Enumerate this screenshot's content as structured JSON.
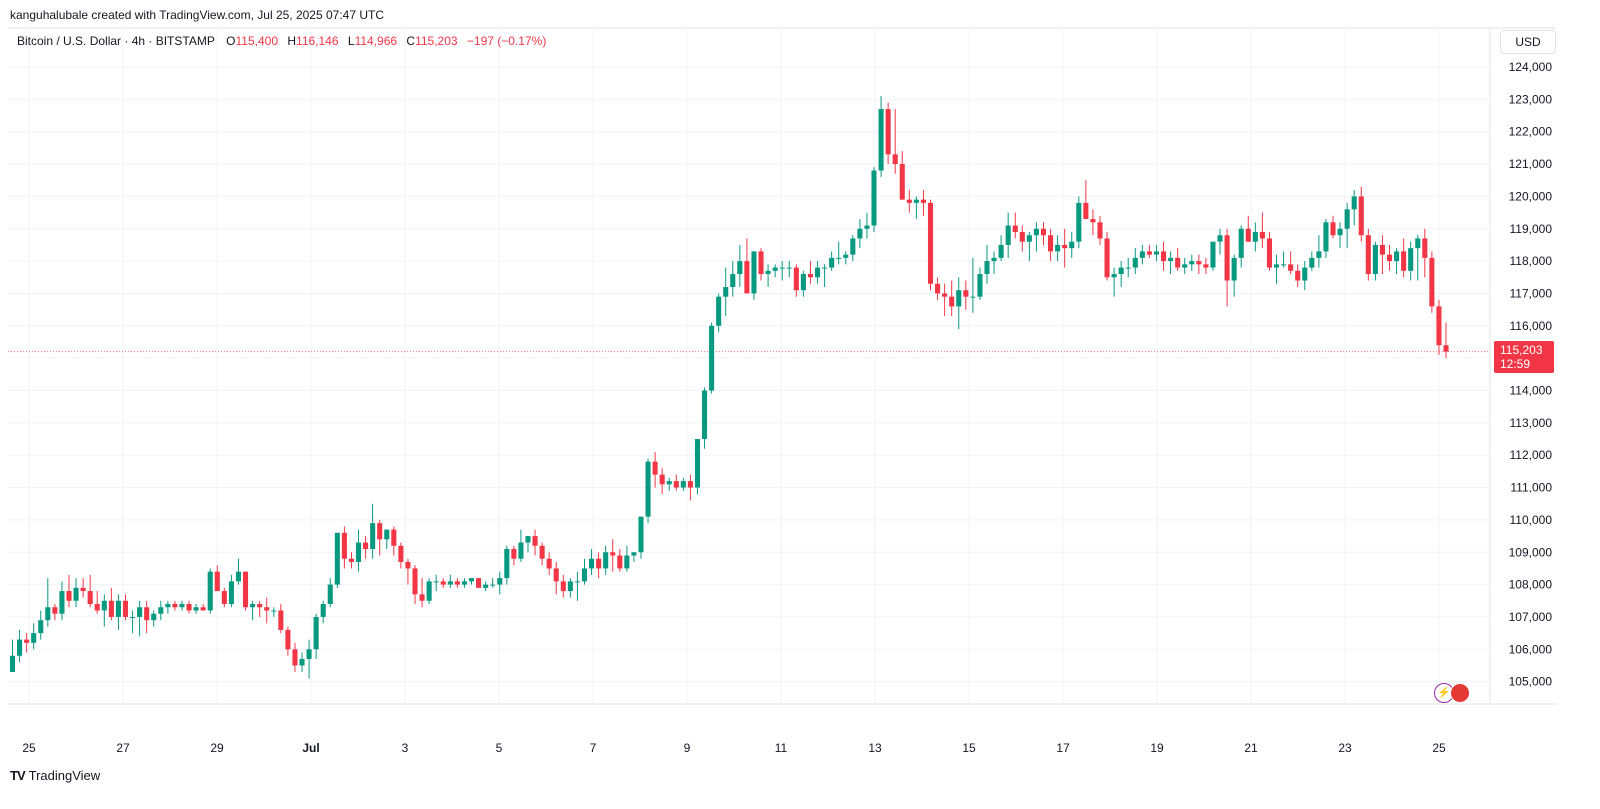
{
  "header": {
    "author_line": "kanguhalubale created with TradingView.com, Jul 25, 2025 07:47 UTC",
    "symbol": "Bitcoin / U.S. Dollar · 4h · BITSTAMP",
    "o_label": "O",
    "o_value": "115,400",
    "h_label": "H",
    "h_value": "116,146",
    "l_label": "L",
    "l_value": "114,966",
    "c_label": "C",
    "c_value": "115,203",
    "change": "−197 (−0.17%)",
    "currency": "USD"
  },
  "price_tag": {
    "price": "115,203",
    "countdown": "12:59"
  },
  "brand": {
    "name": "TradingView"
  },
  "colors": {
    "up": "#089981",
    "down": "#f23645",
    "grid": "#f0f3fa",
    "text": "#131722"
  },
  "chart_data": {
    "type": "candlestick",
    "ylim": [
      104250,
      124700
    ],
    "x_tick_labels": [
      "25",
      "27",
      "29",
      "Jul",
      "3",
      "5",
      "7",
      "9",
      "11",
      "13",
      "15",
      "17",
      "19",
      "21",
      "23",
      "25"
    ],
    "y_tick_labels": [
      "124,000",
      "123,000",
      "122,000",
      "121,000",
      "120,000",
      "119,000",
      "118,000",
      "117,000",
      "116,000",
      "115,000",
      "114,000",
      "113,000",
      "112,000",
      "111,000",
      "110,000",
      "109,000",
      "108,000",
      "107,000",
      "106,000",
      "105,000"
    ],
    "last_price": 115203,
    "candles": [
      [
        105300,
        106300,
        105300,
        105800
      ],
      [
        105800,
        106600,
        105600,
        106300
      ],
      [
        106300,
        106500,
        105900,
        106200
      ],
      [
        106200,
        106800,
        106000,
        106500
      ],
      [
        106500,
        107200,
        106300,
        106900
      ],
      [
        106900,
        108200,
        106700,
        107300
      ],
      [
        107300,
        107400,
        106900,
        107100
      ],
      [
        107100,
        108100,
        106900,
        107800
      ],
      [
        107800,
        108300,
        107300,
        107500
      ],
      [
        107500,
        108200,
        107300,
        107900
      ],
      [
        107900,
        108200,
        107600,
        107800
      ],
      [
        107800,
        108300,
        107300,
        107400
      ],
      [
        107400,
        107800,
        107100,
        107200
      ],
      [
        107200,
        107700,
        106700,
        107500
      ],
      [
        107500,
        107900,
        106900,
        107000
      ],
      [
        107000,
        107700,
        106600,
        107500
      ],
      [
        107500,
        107700,
        106900,
        107000
      ],
      [
        107000,
        107200,
        106500,
        107000
      ],
      [
        107000,
        107500,
        106400,
        107300
      ],
      [
        107300,
        107500,
        106500,
        106900
      ],
      [
        106900,
        107200,
        106700,
        107100
      ],
      [
        107100,
        107500,
        106900,
        107300
      ],
      [
        107300,
        107500,
        107100,
        107400
      ],
      [
        107400,
        107500,
        107200,
        107300
      ],
      [
        107300,
        107500,
        107200,
        107400
      ],
      [
        107400,
        107500,
        107100,
        107200
      ],
      [
        107200,
        107400,
        107100,
        107300
      ],
      [
        107300,
        107400,
        107200,
        107200
      ],
      [
        107200,
        108500,
        107100,
        108400
      ],
      [
        108400,
        108600,
        107800,
        107800
      ],
      [
        107800,
        107900,
        107300,
        107400
      ],
      [
        107400,
        108300,
        107300,
        108100
      ],
      [
        108100,
        108800,
        108000,
        108400
      ],
      [
        108400,
        108400,
        107200,
        107300
      ],
      [
        107300,
        107500,
        106900,
        107400
      ],
      [
        107400,
        107500,
        107000,
        107300
      ],
      [
        107300,
        107600,
        106800,
        107200
      ],
      [
        107200,
        107300,
        107000,
        107200
      ],
      [
        107200,
        107400,
        106500,
        106600
      ],
      [
        106600,
        106700,
        105800,
        106000
      ],
      [
        106000,
        106200,
        105300,
        105500
      ],
      [
        105500,
        105900,
        105300,
        105700
      ],
      [
        105700,
        106300,
        105100,
        106000
      ],
      [
        106000,
        107100,
        105700,
        107000
      ],
      [
        107000,
        107500,
        106800,
        107400
      ],
      [
        107400,
        108200,
        107300,
        108000
      ],
      [
        108000,
        109600,
        107900,
        109600
      ],
      [
        109600,
        109800,
        108500,
        108800
      ],
      [
        108800,
        109000,
        108500,
        108700
      ],
      [
        108700,
        109700,
        108400,
        109300
      ],
      [
        109300,
        109500,
        108800,
        109100
      ],
      [
        109100,
        110500,
        108800,
        109900
      ],
      [
        109900,
        110000,
        108900,
        109400
      ],
      [
        109400,
        109700,
        109100,
        109700
      ],
      [
        109700,
        109800,
        108900,
        109200
      ],
      [
        109200,
        109300,
        108500,
        108700
      ],
      [
        108700,
        108800,
        108000,
        108500
      ],
      [
        108500,
        108600,
        107400,
        107700
      ],
      [
        107700,
        108200,
        107300,
        107500
      ],
      [
        107500,
        108200,
        107400,
        108100
      ],
      [
        108100,
        108300,
        107800,
        108100
      ],
      [
        108100,
        108200,
        107900,
        108000
      ],
      [
        108000,
        108300,
        107900,
        108100
      ],
      [
        108100,
        108200,
        107900,
        108000
      ],
      [
        108000,
        108200,
        107900,
        108100
      ],
      [
        108100,
        108200,
        108000,
        108200
      ],
      [
        108200,
        108200,
        107900,
        107900
      ],
      [
        107900,
        108100,
        107800,
        108000
      ],
      [
        108000,
        108200,
        107900,
        108000
      ],
      [
        108000,
        108400,
        107700,
        108200
      ],
      [
        108200,
        109200,
        108000,
        109100
      ],
      [
        109100,
        109200,
        108600,
        108800
      ],
      [
        108800,
        109700,
        108700,
        109300
      ],
      [
        109300,
        109500,
        109000,
        109500
      ],
      [
        109500,
        109700,
        108900,
        109200
      ],
      [
        109200,
        109300,
        108600,
        108800
      ],
      [
        108800,
        109000,
        108300,
        108500
      ],
      [
        108500,
        108700,
        107700,
        108100
      ],
      [
        108100,
        108300,
        107600,
        107800
      ],
      [
        107800,
        108200,
        107600,
        108100
      ],
      [
        108100,
        108400,
        107500,
        108100
      ],
      [
        108100,
        108800,
        108000,
        108500
      ],
      [
        108500,
        109100,
        108300,
        108800
      ],
      [
        108800,
        109000,
        108200,
        108500
      ],
      [
        108500,
        109200,
        108300,
        109000
      ],
      [
        109000,
        109400,
        108400,
        108900
      ],
      [
        108900,
        109100,
        108400,
        108500
      ],
      [
        108500,
        109200,
        108400,
        108900
      ],
      [
        108900,
        109000,
        108700,
        109000
      ],
      [
        109000,
        110100,
        108800,
        110100
      ],
      [
        110100,
        111900,
        109900,
        111800
      ],
      [
        111800,
        112100,
        111000,
        111400
      ],
      [
        111400,
        111600,
        110800,
        111100
      ],
      [
        111100,
        111300,
        110900,
        111200
      ],
      [
        111200,
        111400,
        110900,
        111000
      ],
      [
        111000,
        111300,
        110900,
        111200
      ],
      [
        111200,
        111400,
        110600,
        111000
      ],
      [
        111000,
        112500,
        110800,
        112500
      ],
      [
        112500,
        114100,
        112200,
        114000
      ],
      [
        114000,
        116100,
        113900,
        116000
      ],
      [
        116000,
        117000,
        115800,
        116900
      ],
      [
        116900,
        117800,
        116300,
        117200
      ],
      [
        117200,
        118000,
        116900,
        117600
      ],
      [
        117600,
        118500,
        117200,
        118000
      ],
      [
        118000,
        118700,
        117000,
        117000
      ],
      [
        117000,
        118300,
        116800,
        118300
      ],
      [
        118300,
        118400,
        117400,
        117600
      ],
      [
        117600,
        117900,
        117200,
        117700
      ],
      [
        117700,
        117900,
        117500,
        117800
      ],
      [
        117800,
        118000,
        117400,
        117800
      ],
      [
        117800,
        118000,
        117500,
        117800
      ],
      [
        117800,
        117900,
        116900,
        117100
      ],
      [
        117100,
        117700,
        116900,
        117600
      ],
      [
        117600,
        118000,
        117300,
        117500
      ],
      [
        117500,
        118000,
        117300,
        117800
      ],
      [
        117800,
        117900,
        117200,
        117800
      ],
      [
        117800,
        118300,
        117700,
        118100
      ],
      [
        118100,
        118600,
        117900,
        118100
      ],
      [
        118100,
        118300,
        117900,
        118200
      ],
      [
        118200,
        118800,
        118000,
        118700
      ],
      [
        118700,
        119300,
        118400,
        119000
      ],
      [
        119000,
        119500,
        118700,
        119100
      ],
      [
        119100,
        120900,
        118900,
        120800
      ],
      [
        120800,
        123100,
        120600,
        122700
      ],
      [
        122700,
        122900,
        121000,
        121300
      ],
      [
        121300,
        122700,
        120700,
        121000
      ],
      [
        121000,
        121400,
        119900,
        119900
      ],
      [
        119900,
        120200,
        119500,
        119800
      ],
      [
        119800,
        120000,
        119300,
        119900
      ],
      [
        119900,
        120200,
        119400,
        119800
      ],
      [
        119800,
        119900,
        117100,
        117300
      ],
      [
        117300,
        117500,
        116800,
        117000
      ],
      [
        117000,
        117300,
        116300,
        116900
      ],
      [
        116900,
        117400,
        116300,
        116600
      ],
      [
        116600,
        117500,
        115900,
        117100
      ],
      [
        117100,
        117400,
        116500,
        116900
      ],
      [
        116900,
        118100,
        116400,
        116900
      ],
      [
        116900,
        117800,
        116800,
        117600
      ],
      [
        117600,
        118500,
        117300,
        118000
      ],
      [
        118000,
        118300,
        117600,
        118100
      ],
      [
        118100,
        118800,
        118000,
        118500
      ],
      [
        118500,
        119500,
        118100,
        119100
      ],
      [
        119100,
        119500,
        118700,
        118900
      ],
      [
        118900,
        119100,
        118300,
        118600
      ],
      [
        118600,
        118900,
        118000,
        118800
      ],
      [
        118800,
        119200,
        118300,
        119000
      ],
      [
        119000,
        119200,
        118500,
        118800
      ],
      [
        118800,
        119000,
        118000,
        118300
      ],
      [
        118300,
        118800,
        118000,
        118500
      ],
      [
        118500,
        119000,
        117800,
        118400
      ],
      [
        118400,
        118900,
        118100,
        118600
      ],
      [
        118600,
        120000,
        118400,
        119800
      ],
      [
        119800,
        120500,
        119300,
        119300
      ],
      [
        119300,
        119600,
        118800,
        119200
      ],
      [
        119200,
        119400,
        118500,
        118700
      ],
      [
        118700,
        118900,
        117400,
        117500
      ],
      [
        117500,
        117800,
        116900,
        117600
      ],
      [
        117600,
        118000,
        117200,
        117800
      ],
      [
        117800,
        118100,
        117500,
        117800
      ],
      [
        117800,
        118400,
        117600,
        118100
      ],
      [
        118100,
        118500,
        117900,
        118300
      ],
      [
        118300,
        118500,
        118100,
        118200
      ],
      [
        118200,
        118500,
        118000,
        118300
      ],
      [
        118300,
        118600,
        117700,
        118000
      ],
      [
        118000,
        118300,
        117600,
        118100
      ],
      [
        118100,
        118400,
        117700,
        117800
      ],
      [
        117800,
        118100,
        117600,
        117900
      ],
      [
        117900,
        118200,
        117700,
        118000
      ],
      [
        118000,
        118200,
        117600,
        117900
      ],
      [
        117900,
        118100,
        117600,
        117800
      ],
      [
        117800,
        118600,
        117700,
        118600
      ],
      [
        118600,
        119000,
        118200,
        118800
      ],
      [
        118800,
        119000,
        116600,
        117400
      ],
      [
        117400,
        118200,
        116900,
        118100
      ],
      [
        118100,
        119100,
        117800,
        119000
      ],
      [
        119000,
        119400,
        118600,
        118600
      ],
      [
        118600,
        119200,
        118300,
        118900
      ],
      [
        118900,
        119500,
        118400,
        118700
      ],
      [
        118700,
        118900,
        117700,
        117800
      ],
      [
        117800,
        118200,
        117300,
        117900
      ],
      [
        117900,
        118300,
        117800,
        117900
      ],
      [
        117900,
        118300,
        117600,
        117700
      ],
      [
        117700,
        117900,
        117200,
        117400
      ],
      [
        117400,
        118000,
        117100,
        117800
      ],
      [
        117800,
        118300,
        117700,
        118100
      ],
      [
        118100,
        118800,
        117800,
        118300
      ],
      [
        118300,
        119300,
        118100,
        119200
      ],
      [
        119200,
        119400,
        118700,
        118800
      ],
      [
        118800,
        119200,
        118400,
        119000
      ],
      [
        119000,
        119800,
        118400,
        119600
      ],
      [
        119600,
        120200,
        119100,
        120000
      ],
      [
        120000,
        120300,
        118600,
        118800
      ],
      [
        118800,
        119000,
        117400,
        117600
      ],
      [
        117600,
        118600,
        117400,
        118500
      ],
      [
        118500,
        118800,
        117600,
        118200
      ],
      [
        118200,
        118500,
        117700,
        118000
      ],
      [
        118000,
        118400,
        117600,
        118300
      ],
      [
        118300,
        118700,
        117500,
        117700
      ],
      [
        117700,
        118600,
        117400,
        118400
      ],
      [
        118400,
        118800,
        117400,
        118700
      ],
      [
        118700,
        119000,
        117500,
        118100
      ],
      [
        118100,
        118300,
        116400,
        116600
      ],
      [
        116600,
        116800,
        115100,
        115400
      ],
      [
        115400,
        116100,
        115000,
        115200
      ]
    ]
  }
}
